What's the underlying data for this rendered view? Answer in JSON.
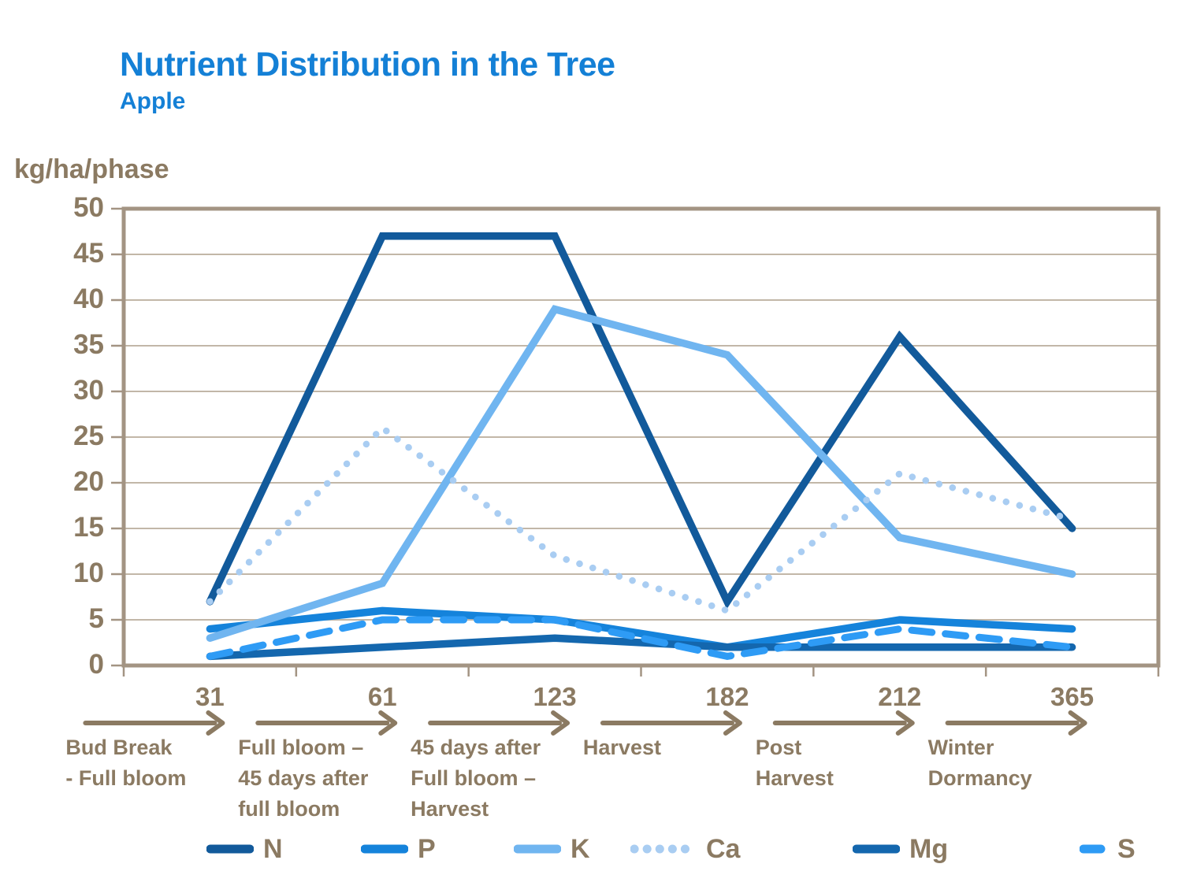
{
  "header": {
    "title": "Nutrient Distribution in the Tree",
    "subtitle": "Apple"
  },
  "y_axis": {
    "unit_label": "kg/ha/phase",
    "tick_values": [
      0,
      5,
      10,
      15,
      20,
      25,
      30,
      35,
      40,
      45,
      50
    ]
  },
  "x_axis": {
    "day_labels": [
      "31",
      "61",
      "123",
      "182",
      "212",
      "365"
    ],
    "phase_labels": [
      [
        "Bud Break",
        "- Full bloom"
      ],
      [
        "Full bloom –",
        "45 days after",
        "full bloom"
      ],
      [
        "45 days after",
        "Full bloom –",
        "Harvest"
      ],
      [
        "Harvest"
      ],
      [
        "Post",
        "Harvest"
      ],
      [
        "Winter",
        "Dormancy"
      ]
    ]
  },
  "colors": {
    "title_blue": "#1480d6",
    "axis_text_brown": "#8b7a62",
    "frame": "#a39483",
    "gridline": "#c2b7a8",
    "arrow": "#8b7a62"
  },
  "chart_data": {
    "type": "line",
    "title": "Nutrient Distribution in the Tree",
    "subtitle": "Apple",
    "ylabel": "kg/ha/phase",
    "ylim": [
      0,
      50
    ],
    "ytick_step": 5,
    "grid": true,
    "legend_position": "bottom",
    "x": [
      31,
      61,
      123,
      182,
      212,
      365
    ],
    "categories": [
      "31",
      "61",
      "123",
      "182",
      "212",
      "365"
    ],
    "series": [
      {
        "name": "N",
        "color": "#125a9b",
        "dash": "solid",
        "values": [
          7,
          47,
          47,
          7,
          36,
          15
        ]
      },
      {
        "name": "P",
        "color": "#1583db",
        "dash": "solid",
        "values": [
          4,
          6,
          5,
          2,
          5,
          4
        ]
      },
      {
        "name": "K",
        "color": "#70b5f0",
        "dash": "solid",
        "values": [
          3,
          9,
          39,
          34,
          14,
          10
        ]
      },
      {
        "name": "Ca",
        "color": "#a9cdf2",
        "dash": "dotted",
        "values": [
          7,
          26,
          12,
          6,
          21,
          16
        ]
      },
      {
        "name": "Mg",
        "color": "#1467ae",
        "dash": "solid",
        "values": [
          1,
          2,
          3,
          2,
          2,
          2
        ]
      },
      {
        "name": "S",
        "color": "#2e9bf5",
        "dash": "dashed",
        "values": [
          1,
          5,
          5,
          1,
          4,
          2
        ]
      }
    ]
  }
}
